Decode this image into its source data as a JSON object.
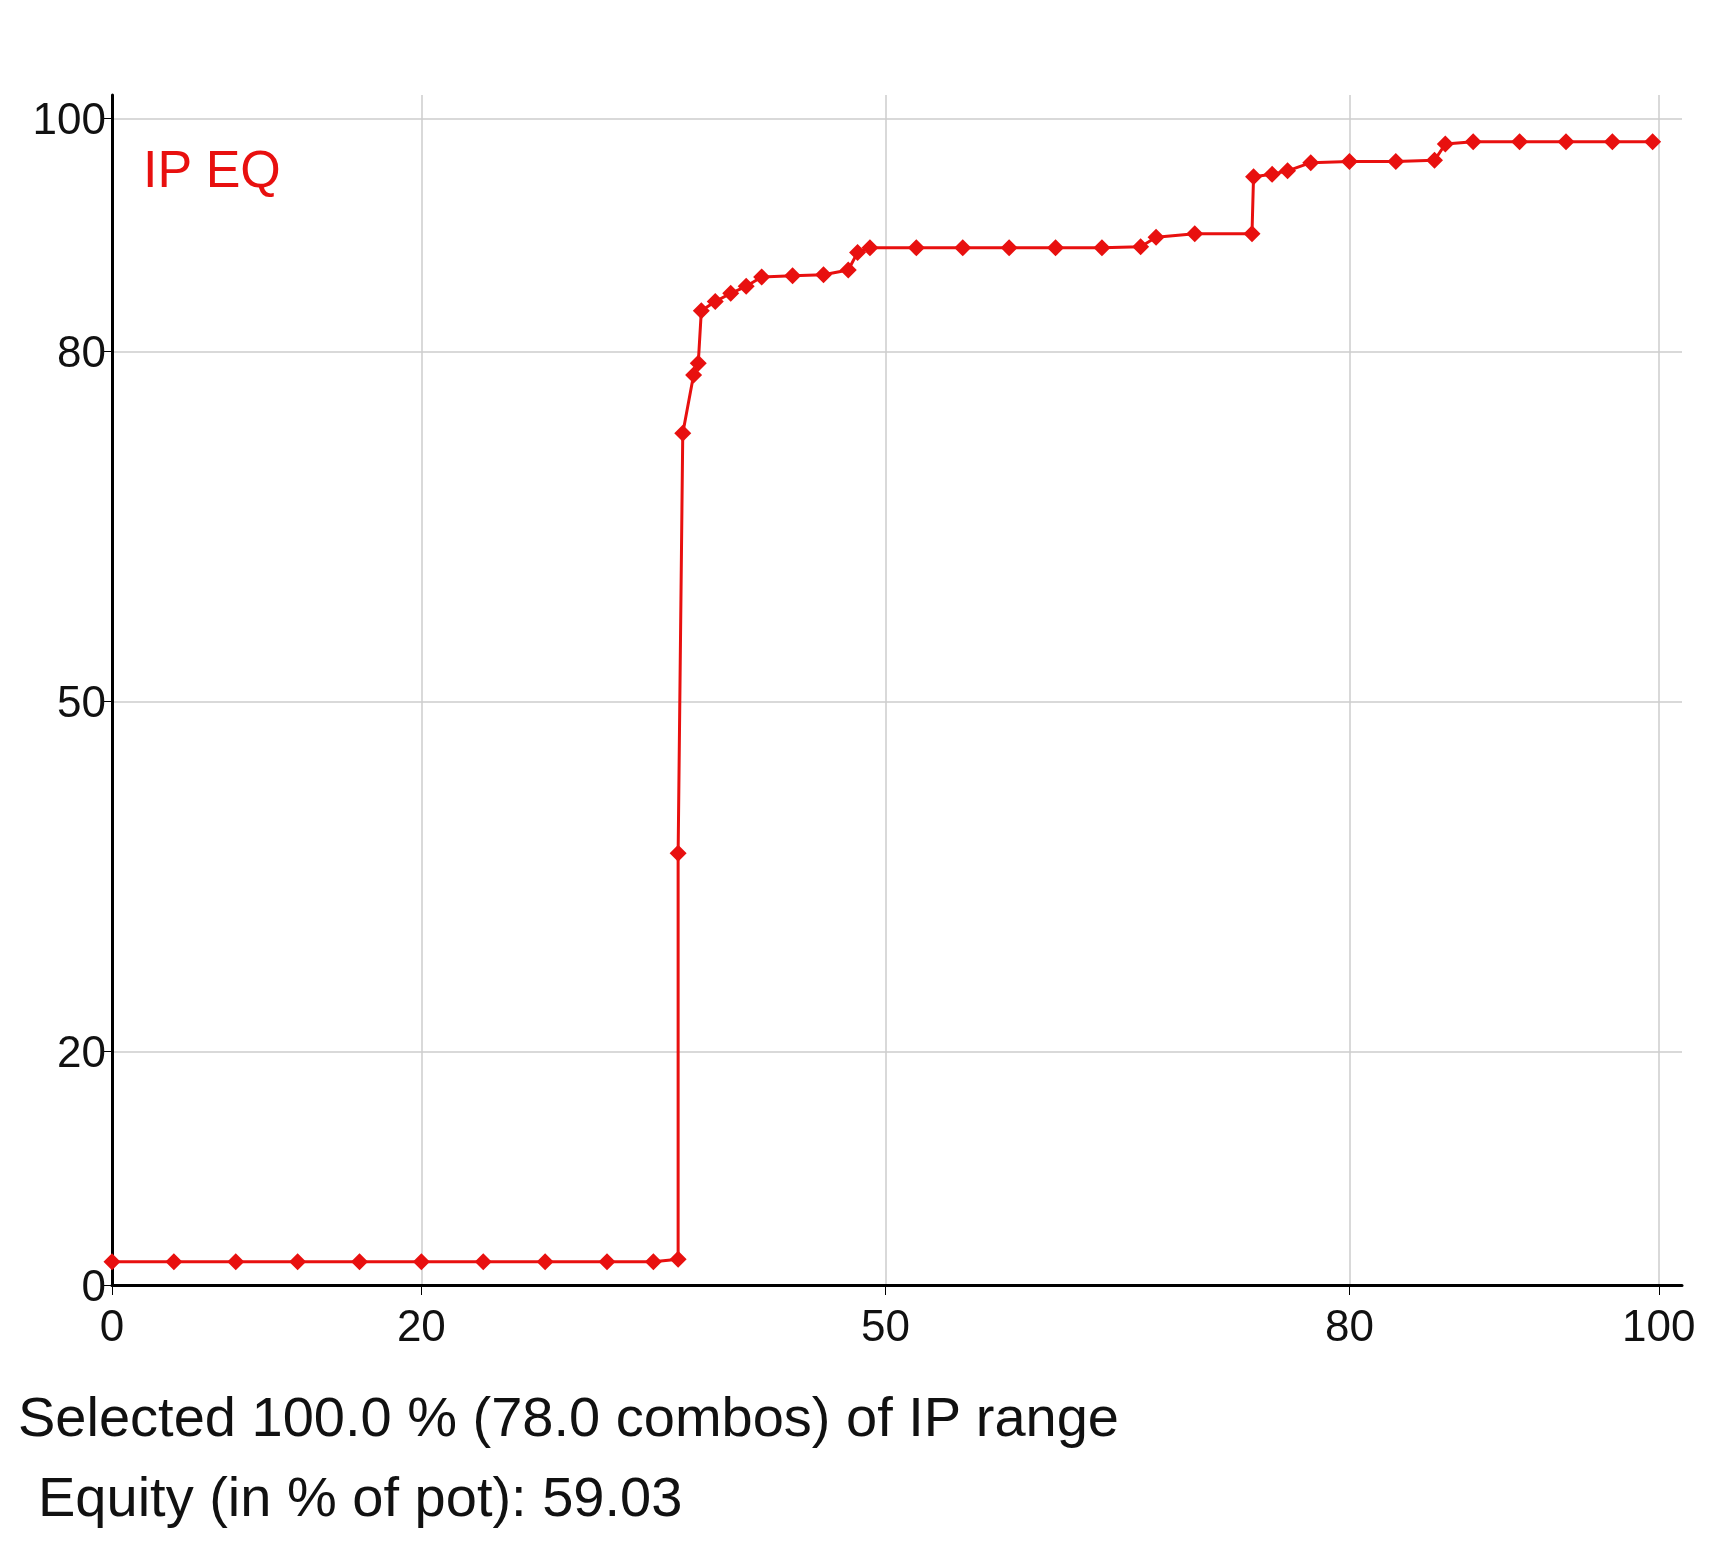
{
  "chart_data": {
    "type": "line",
    "annotations": [
      "Selected 100.0 % (78.0 combos) of IP range",
      "Equity (in % of pot): 59.03"
    ],
    "xlim": [
      0,
      101.5
    ],
    "xticks": [
      0,
      20,
      50,
      80,
      100
    ],
    "ylim": [
      0,
      102
    ],
    "yticks": [
      0,
      20,
      50,
      80,
      100
    ],
    "grid": true,
    "marker": "diamond",
    "line_style": "solid",
    "series": [
      {
        "name": "IP EQ",
        "color": "#e8100f",
        "x": [
          0,
          4,
          8,
          12,
          16,
          20,
          24,
          28,
          32,
          35,
          36.6,
          36.6,
          36.9,
          37.6,
          37.9,
          38.1,
          39,
          40,
          41,
          42,
          44,
          46,
          47.6,
          48.2,
          49,
          52,
          55,
          58,
          61,
          64,
          66.5,
          67.5,
          70,
          73.7,
          73.8,
          75,
          76,
          77.5,
          80,
          83,
          85.5,
          86.2,
          88,
          91,
          94,
          97,
          99.6
        ],
        "values": [
          2,
          2,
          2,
          2,
          2,
          2,
          2,
          2,
          2,
          2,
          2.2,
          37,
          73,
          78,
          79,
          83.5,
          84.3,
          85,
          85.6,
          86.4,
          86.5,
          86.6,
          87,
          88.5,
          88.9,
          88.9,
          88.9,
          88.9,
          88.9,
          88.9,
          89,
          89.8,
          90.1,
          90.1,
          95,
          95.2,
          95.5,
          96.2,
          96.3,
          96.3,
          96.4,
          97.8,
          98,
          98,
          98,
          98,
          98
        ]
      }
    ]
  }
}
